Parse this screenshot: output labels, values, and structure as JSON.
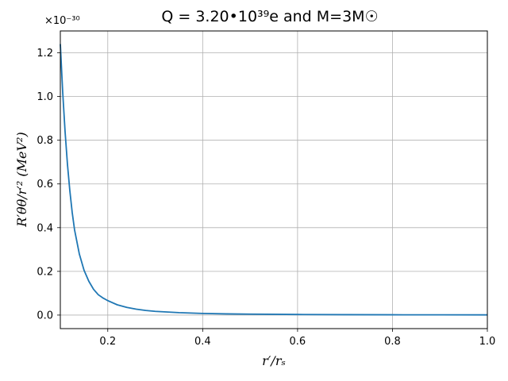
{
  "chart_data": {
    "type": "line",
    "title": "Q = 3.20•10³⁹e    and    M=3M☉",
    "xlabel": "r′/rₛ",
    "ylabel": "R′θθ/r′² (MeV²)",
    "y_offset_label": "×10⁻³⁰",
    "xlim": [
      0.1,
      1.0
    ],
    "ylim": [
      -0.062,
      1.3
    ],
    "x_ticks": [
      0.2,
      0.4,
      0.6,
      0.8,
      1.0
    ],
    "x_tick_labels": [
      "0.2",
      "0.4",
      "0.6",
      "0.8",
      "1.0"
    ],
    "y_ticks": [
      0.0,
      0.2,
      0.4,
      0.6,
      0.8,
      1.0,
      1.2
    ],
    "y_tick_labels": [
      "0.0",
      "0.2",
      "0.4",
      "0.6",
      "0.8",
      "1.0",
      "1.2"
    ],
    "grid": true,
    "line_color": "#1f77b4",
    "series": [
      {
        "x": [
          0.1,
          0.105,
          0.11,
          0.115,
          0.12,
          0.125,
          0.13,
          0.14,
          0.15,
          0.16,
          0.17,
          0.18,
          0.19,
          0.2,
          0.22,
          0.24,
          0.26,
          0.28,
          0.3,
          0.35,
          0.4,
          0.45,
          0.5,
          0.6,
          0.7,
          0.8,
          0.9,
          1.0
        ],
        "y": [
          1.24,
          1.02,
          0.84,
          0.69,
          0.57,
          0.47,
          0.39,
          0.28,
          0.205,
          0.155,
          0.118,
          0.093,
          0.078,
          0.066,
          0.047,
          0.035,
          0.027,
          0.021,
          0.017,
          0.011,
          0.0075,
          0.0055,
          0.0042,
          0.0027,
          0.0018,
          0.0013,
          0.001,
          0.0008
        ]
      }
    ]
  }
}
